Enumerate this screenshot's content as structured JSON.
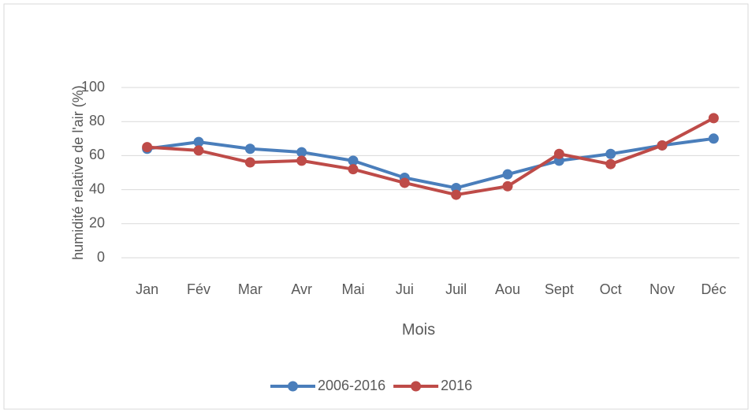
{
  "chart_data": {
    "type": "line",
    "xlabel": "Mois",
    "ylabel": "humidité relative de l'air (%)",
    "categories": [
      "Jan",
      "Fév",
      "Mar",
      "Avr",
      "Mai",
      "Jui",
      "Juil",
      "Aou",
      "Sept",
      "Oct",
      "Nov",
      "Déc"
    ],
    "series": [
      {
        "name": "2006-2016",
        "color": "#4a7ebb",
        "values": [
          64,
          68,
          64,
          62,
          57,
          47,
          41,
          49,
          57,
          61,
          66,
          70
        ]
      },
      {
        "name": "2016",
        "color": "#be4b48",
        "values": [
          65,
          63,
          56,
          57,
          52,
          44,
          37,
          42,
          61,
          55,
          66,
          82
        ]
      }
    ],
    "ylim": [
      0,
      100
    ],
    "yticks": [
      0,
      20,
      40,
      60,
      80,
      100
    ],
    "grid": true,
    "legend": "bottom"
  }
}
